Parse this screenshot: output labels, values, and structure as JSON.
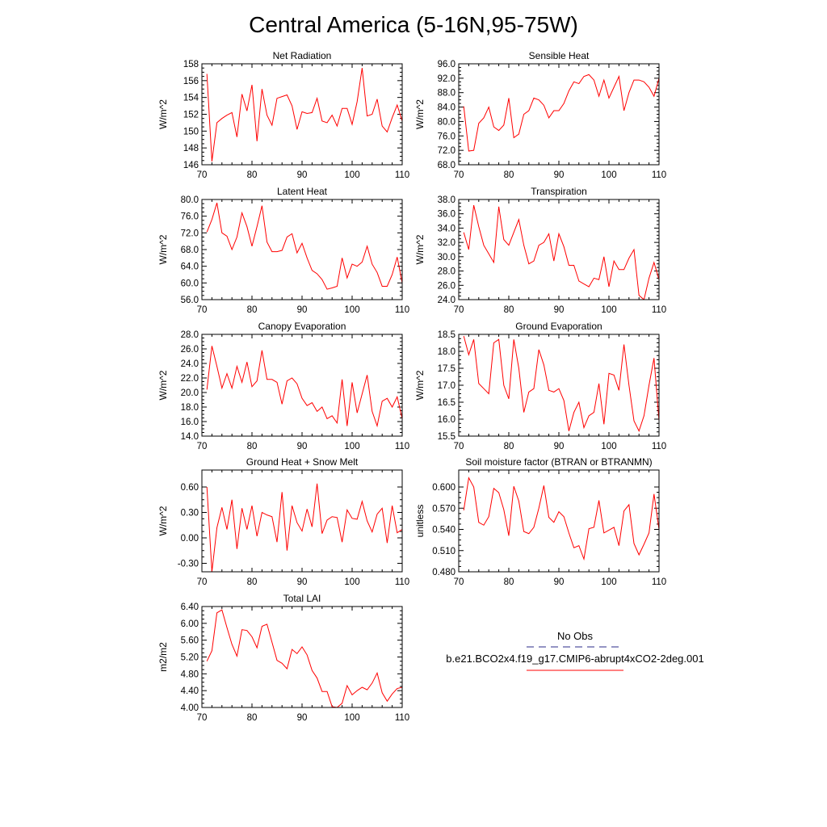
{
  "figure_title": "Central America (5-16N,95-75W)",
  "legend": {
    "obs_label": "No Obs",
    "obs_color": "#2a2a8a",
    "model_label": "b.e21.BCO2x4.f19_g17.CMIP6-abrupt4xCO2-2deg.001",
    "model_color": "#ff0000"
  },
  "chart_data": [
    {
      "type": "line",
      "title": "Net Radiation",
      "ylabel": "W/m^2",
      "xlim": [
        70,
        110
      ],
      "ylim": [
        146,
        158
      ],
      "xticks": [
        70,
        80,
        90,
        100,
        110
      ],
      "yticks": [
        "146",
        "148",
        "150",
        "152",
        "154",
        "156",
        "158"
      ],
      "series": [
        {
          "name": "b.e21.BCO2x4.f19_g17.CMIP6-abrupt4xCO2-2deg.001",
          "x_start": 71,
          "values": [
            156.8,
            146.4,
            151.0,
            151.5,
            151.9,
            152.2,
            149.3,
            154.4,
            152.4,
            155.5,
            148.8,
            155.0,
            151.9,
            150.7,
            153.9,
            154.1,
            154.3,
            153.0,
            150.2,
            152.3,
            152.1,
            152.2,
            153.9,
            151.2,
            151.0,
            151.9,
            150.6,
            152.7,
            152.7,
            150.8,
            153.5,
            157.5,
            151.8,
            152.0,
            153.8,
            150.6,
            149.9,
            151.6,
            153.1,
            151.2
          ]
        }
      ]
    },
    {
      "type": "line",
      "title": "Sensible Heat",
      "ylabel": "W/m^2",
      "xlim": [
        70,
        110
      ],
      "ylim": [
        68,
        96
      ],
      "xticks": [
        70,
        80,
        90,
        100,
        110
      ],
      "yticks": [
        "68.0",
        "72.0",
        "76.0",
        "80.0",
        "84.0",
        "88.0",
        "92.0",
        "96.0"
      ],
      "series": [
        {
          "name": "b.e21.BCO2x4.f19_g17.CMIP6-abrupt4xCO2-2deg.001",
          "x_start": 71,
          "values": [
            84.2,
            71.8,
            72.0,
            79.5,
            81.0,
            84.0,
            78.5,
            77.5,
            79.0,
            86.5,
            75.5,
            76.5,
            82.0,
            83.0,
            86.5,
            86.0,
            84.5,
            81.0,
            83.0,
            83.0,
            85.0,
            88.5,
            91.0,
            90.5,
            92.5,
            93.0,
            91.5,
            87.0,
            91.5,
            86.5,
            89.5,
            92.5,
            83.0,
            88.0,
            91.5,
            91.5,
            91.0,
            89.5,
            87.0,
            92.0
          ]
        }
      ]
    },
    {
      "type": "line",
      "title": "Latent Heat",
      "ylabel": "W/m^2",
      "xlim": [
        70,
        110
      ],
      "ylim": [
        56,
        80
      ],
      "xticks": [
        70,
        80,
        90,
        100,
        110
      ],
      "yticks": [
        "56.0",
        "60.0",
        "64.0",
        "68.0",
        "72.0",
        "76.0",
        "80.0"
      ],
      "series": [
        {
          "name": "b.e21.BCO2x4.f19_g17.CMIP6-abrupt4xCO2-2deg.001",
          "x_start": 71,
          "values": [
            72.2,
            75.2,
            79.2,
            72.0,
            71.2,
            68.0,
            71.0,
            76.8,
            73.5,
            68.8,
            73.5,
            78.5,
            69.8,
            67.5,
            67.5,
            67.8,
            71.0,
            71.8,
            67.2,
            69.5,
            66.0,
            63.0,
            62.2,
            60.8,
            58.5,
            58.8,
            59.2,
            66.0,
            61.2,
            64.5,
            64.0,
            65.0,
            68.8,
            64.5,
            62.5,
            59.2,
            59.2,
            62.0,
            66.2,
            60.0
          ]
        }
      ]
    },
    {
      "type": "line",
      "title": "Transpiration",
      "ylabel": "W/m^2",
      "xlim": [
        70,
        110
      ],
      "ylim": [
        24,
        38
      ],
      "xticks": [
        70,
        80,
        90,
        100,
        110
      ],
      "yticks": [
        "24.0",
        "26.0",
        "28.0",
        "30.0",
        "32.0",
        "34.0",
        "36.0",
        "38.0"
      ],
      "series": [
        {
          "name": "b.e21.BCO2x4.f19_g17.CMIP6-abrupt4xCO2-2deg.001",
          "x_start": 71,
          "values": [
            33.4,
            31.0,
            37.2,
            34.2,
            31.6,
            30.4,
            29.2,
            37.0,
            32.4,
            31.6,
            33.4,
            35.2,
            31.6,
            29.0,
            29.4,
            31.6,
            32.0,
            33.2,
            29.4,
            33.2,
            31.4,
            28.8,
            28.8,
            26.6,
            26.2,
            25.8,
            27.0,
            26.8,
            30.0,
            25.8,
            29.4,
            28.2,
            28.2,
            29.8,
            31.0,
            24.6,
            24.0,
            27.0,
            29.2,
            26.8
          ]
        }
      ]
    },
    {
      "type": "line",
      "title": "Canopy Evaporation",
      "ylabel": "W/m^2",
      "xlim": [
        70,
        110
      ],
      "ylim": [
        14,
        28
      ],
      "xticks": [
        70,
        80,
        90,
        100,
        110
      ],
      "yticks": [
        "14.0",
        "16.0",
        "18.0",
        "20.0",
        "22.0",
        "24.0",
        "26.0",
        "28.0"
      ],
      "series": [
        {
          "name": "b.e21.BCO2x4.f19_g17.CMIP6-abrupt4xCO2-2deg.001",
          "x_start": 71,
          "values": [
            20.4,
            26.4,
            23.6,
            20.6,
            22.6,
            20.6,
            23.6,
            21.4,
            24.2,
            20.8,
            21.6,
            25.8,
            21.8,
            21.8,
            21.4,
            18.4,
            21.6,
            22.0,
            21.2,
            19.2,
            18.2,
            18.6,
            17.4,
            18.0,
            16.4,
            16.8,
            15.8,
            21.8,
            15.4,
            21.4,
            17.2,
            19.8,
            22.4,
            17.4,
            15.4,
            18.8,
            19.2,
            18.0,
            19.4,
            16.4
          ]
        }
      ]
    },
    {
      "type": "line",
      "title": "Ground Evaporation",
      "ylabel": "W/m^2",
      "xlim": [
        70,
        110
      ],
      "ylim": [
        15.5,
        18.5
      ],
      "xticks": [
        70,
        80,
        90,
        100,
        110
      ],
      "yticks": [
        "15.5",
        "16.0",
        "16.5",
        "17.0",
        "17.5",
        "18.0",
        "18.5"
      ],
      "series": [
        {
          "name": "b.e21.BCO2x4.f19_g17.CMIP6-abrupt4xCO2-2deg.001",
          "x_start": 71,
          "values": [
            18.45,
            17.9,
            18.35,
            17.05,
            16.9,
            16.75,
            18.25,
            18.35,
            17.0,
            16.6,
            18.35,
            17.5,
            16.2,
            16.8,
            16.9,
            18.05,
            17.6,
            16.85,
            16.8,
            16.9,
            16.55,
            15.65,
            16.2,
            16.5,
            15.75,
            16.1,
            16.2,
            17.05,
            15.85,
            17.35,
            17.3,
            16.85,
            18.2,
            17.0,
            15.95,
            15.65,
            16.1,
            17.0,
            17.8,
            15.95
          ]
        }
      ]
    },
    {
      "type": "line",
      "title": "Ground Heat + Snow Melt",
      "ylabel": "W/m^2",
      "xlim": [
        70,
        110
      ],
      "ylim": [
        -0.4,
        0.8
      ],
      "xticks": [
        70,
        80,
        90,
        100,
        110
      ],
      "yticks": [
        "-0.30",
        "0.00",
        "0.30",
        "0.60"
      ],
      "ytick_values": [
        -0.3,
        0.0,
        0.3,
        0.6
      ],
      "series": [
        {
          "name": "b.e21.BCO2x4.f19_g17.CMIP6-abrupt4xCO2-2deg.001",
          "x_start": 71,
          "values": [
            0.6,
            -0.4,
            0.12,
            0.36,
            0.1,
            0.45,
            -0.13,
            0.35,
            0.1,
            0.38,
            0.02,
            0.3,
            0.27,
            0.25,
            -0.05,
            0.54,
            -0.15,
            0.38,
            0.18,
            0.08,
            0.34,
            0.13,
            0.64,
            0.05,
            0.21,
            0.25,
            0.24,
            -0.05,
            0.33,
            0.23,
            0.22,
            0.43,
            0.2,
            0.07,
            0.28,
            0.35,
            -0.06,
            0.38,
            0.06,
            0.1
          ]
        }
      ]
    },
    {
      "type": "line",
      "title": "Soil moisture factor (BTRAN or BTRANMN)",
      "ylabel": "unitless",
      "xlim": [
        70,
        110
      ],
      "ylim": [
        0.48,
        0.624
      ],
      "xticks": [
        70,
        80,
        90,
        100,
        110
      ],
      "yticks": [
        "0.480",
        "0.510",
        "0.540",
        "0.570",
        "0.600"
      ],
      "ytick_values": [
        0.48,
        0.51,
        0.54,
        0.57,
        0.6
      ],
      "series": [
        {
          "name": "b.e21.BCO2x4.f19_g17.CMIP6-abrupt4xCO2-2deg.001",
          "x_start": 71,
          "values": [
            0.567,
            0.613,
            0.6,
            0.55,
            0.546,
            0.558,
            0.598,
            0.592,
            0.568,
            0.531,
            0.601,
            0.58,
            0.537,
            0.534,
            0.543,
            0.57,
            0.602,
            0.557,
            0.55,
            0.565,
            0.558,
            0.535,
            0.514,
            0.517,
            0.498,
            0.541,
            0.543,
            0.581,
            0.535,
            0.539,
            0.543,
            0.517,
            0.566,
            0.575,
            0.52,
            0.504,
            0.519,
            0.535,
            0.59,
            0.54
          ]
        }
      ]
    },
    {
      "type": "line",
      "title": "Total LAI",
      "ylabel": "m2/m2",
      "xlim": [
        70,
        110
      ],
      "ylim": [
        4.0,
        6.4
      ],
      "xticks": [
        70,
        80,
        90,
        100,
        110
      ],
      "yticks": [
        "4.00",
        "4.40",
        "4.80",
        "5.20",
        "5.60",
        "6.00",
        "6.40"
      ],
      "series": [
        {
          "name": "b.e21.BCO2x4.f19_g17.CMIP6-abrupt4xCO2-2deg.001",
          "x_start": 71,
          "values": [
            5.1,
            5.35,
            6.25,
            6.32,
            5.9,
            5.5,
            5.22,
            5.85,
            5.83,
            5.68,
            5.42,
            5.93,
            5.98,
            5.55,
            5.12,
            5.05,
            4.92,
            5.38,
            5.28,
            5.44,
            5.25,
            4.88,
            4.7,
            4.38,
            4.38,
            4.02,
            4.0,
            4.1,
            4.52,
            4.3,
            4.4,
            4.48,
            4.42,
            4.58,
            4.82,
            4.35,
            4.15,
            4.32,
            4.45,
            4.48
          ]
        }
      ]
    }
  ]
}
